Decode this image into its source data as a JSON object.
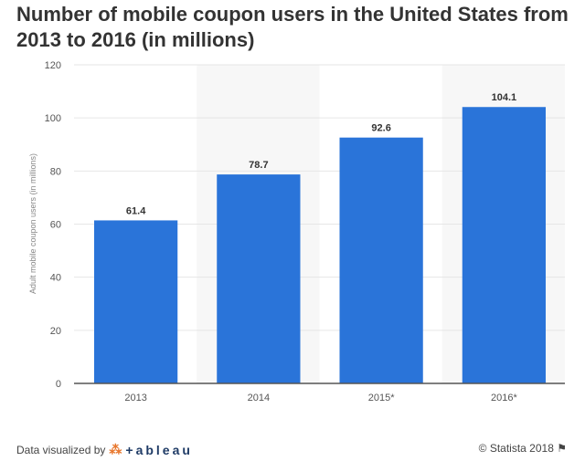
{
  "chart_data": {
    "type": "bar",
    "title": "Number of mobile coupon users in the United States from 2013 to 2016 (in millions)",
    "xlabel": "",
    "ylabel": "Adult mobile coupon users (in millions)",
    "categories": [
      "2013",
      "2014",
      "2015*",
      "2016*"
    ],
    "values": [
      61.4,
      78.7,
      92.6,
      104.1
    ],
    "value_labels": [
      "61.4",
      "78.7",
      "92.6",
      "104.1"
    ],
    "ylim": [
      0,
      120
    ],
    "yticks": [
      0,
      20,
      40,
      60,
      80,
      100,
      120
    ],
    "grid": true,
    "bar_color": "#2a74d9"
  },
  "footer": {
    "left": "Data visualized by",
    "tableau": "+ableau",
    "right": "© Statista 2018"
  }
}
